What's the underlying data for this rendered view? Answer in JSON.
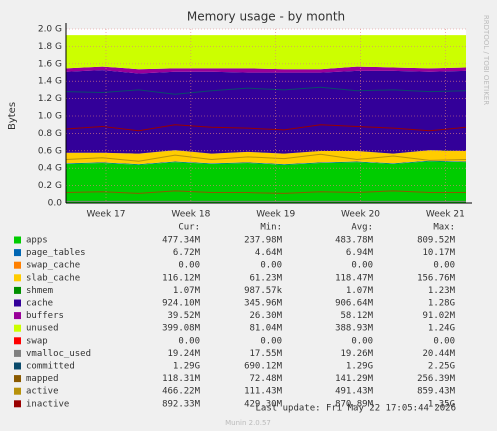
{
  "chart_data": {
    "type": "area",
    "title": "Memory usage - by month",
    "y_label": "Bytes",
    "side_text": "RRDTOOL / TOBI OETIKER",
    "x": [
      0,
      3,
      6,
      9,
      12,
      15,
      18,
      21,
      24,
      27,
      30,
      33
    ],
    "xlim": [
      0,
      33
    ],
    "xticks": [
      {
        "value": 3.3,
        "label": "Week 17"
      },
      {
        "value": 10.3,
        "label": "Week 18"
      },
      {
        "value": 17.3,
        "label": "Week 19"
      },
      {
        "value": 24.3,
        "label": "Week 20"
      },
      {
        "value": 31.3,
        "label": "Week 21"
      }
    ],
    "ylim": [
      0,
      2
    ],
    "yticks": [
      {
        "value": 0,
        "label": "0.0"
      },
      {
        "value": 0.2,
        "label": "0.2 G"
      },
      {
        "value": 0.4,
        "label": "0.4 G"
      },
      {
        "value": 0.6,
        "label": "0.6 G"
      },
      {
        "value": 0.8,
        "label": "0.8 G"
      },
      {
        "value": 1.0,
        "label": "1.0 G"
      },
      {
        "value": 1.2,
        "label": "1.2 G"
      },
      {
        "value": 1.4,
        "label": "1.4 G"
      },
      {
        "value": 1.6,
        "label": "1.6 G"
      },
      {
        "value": 1.8,
        "label": "1.8 G"
      },
      {
        "value": 2.0,
        "label": "2.0 G"
      }
    ],
    "grid": true,
    "stat_headers": [
      "Cur:",
      "Min:",
      "Avg:",
      "Max:"
    ],
    "series": [
      {
        "name": "apps",
        "color": "#00cc00",
        "stack": true,
        "values": [
          0.45,
          0.46,
          0.44,
          0.47,
          0.45,
          0.46,
          0.44,
          0.46,
          0.47,
          0.45,
          0.48,
          0.47
        ],
        "stats": [
          "477.34M",
          "237.98M",
          "483.78M",
          "809.52M"
        ]
      },
      {
        "name": "page_tables",
        "color": "#0066b3",
        "stack": true,
        "values": [
          0.007,
          0.007,
          0.007,
          0.007,
          0.007,
          0.007,
          0.007,
          0.007,
          0.007,
          0.007,
          0.007,
          0.007
        ],
        "stats": [
          "6.72M",
          "4.64M",
          "6.94M",
          "10.17M"
        ]
      },
      {
        "name": "swap_cache",
        "color": "#ff8000",
        "stack": true,
        "values": [
          0,
          0,
          0,
          0,
          0,
          0,
          0,
          0,
          0,
          0,
          0,
          0
        ],
        "stats": [
          "0.00",
          "0.00",
          "0.00",
          "0.00"
        ]
      },
      {
        "name": "slab_cache",
        "color": "#ffcc00",
        "stack": true,
        "values": [
          0.12,
          0.11,
          0.12,
          0.13,
          0.11,
          0.12,
          0.12,
          0.13,
          0.12,
          0.11,
          0.12,
          0.12
        ],
        "stats": [
          "116.12M",
          "61.23M",
          "118.47M",
          "156.76M"
        ]
      },
      {
        "name": "shmem",
        "color": "#008f00",
        "stack": true,
        "values": [
          0.001,
          0.001,
          0.001,
          0.001,
          0.001,
          0.001,
          0.001,
          0.001,
          0.001,
          0.001,
          0.001,
          0.001
        ],
        "stats": [
          "1.07M",
          "987.57k",
          "1.07M",
          "1.23M"
        ]
      },
      {
        "name": "cache",
        "color": "#330099",
        "stack": true,
        "values": [
          0.93,
          0.95,
          0.92,
          0.9,
          0.94,
          0.91,
          0.93,
          0.9,
          0.92,
          0.95,
          0.9,
          0.92
        ],
        "stats": [
          "924.10M",
          "345.96M",
          "906.64M",
          "1.28G"
        ]
      },
      {
        "name": "buffers",
        "color": "#990099",
        "stack": true,
        "values": [
          0.04,
          0.04,
          0.05,
          0.04,
          0.04,
          0.05,
          0.04,
          0.04,
          0.05,
          0.04,
          0.04,
          0.04
        ],
        "stats": [
          "39.52M",
          "26.30M",
          "58.12M",
          "91.02M"
        ]
      },
      {
        "name": "unused",
        "color": "#ccff00",
        "stack": true,
        "values": [
          0.382,
          0.362,
          0.392,
          0.382,
          0.382,
          0.382,
          0.392,
          0.392,
          0.362,
          0.372,
          0.382,
          0.372
        ],
        "stats": [
          "399.08M",
          "81.04M",
          "388.93M",
          "1.24G"
        ]
      },
      {
        "name": "swap",
        "color": "#ff0000",
        "stack": true,
        "values": [
          0,
          0,
          0,
          0,
          0,
          0,
          0,
          0,
          0,
          0,
          0,
          0
        ],
        "stats": [
          "0.00",
          "0.00",
          "0.00",
          "0.00"
        ]
      },
      {
        "name": "vmalloc_used",
        "color": "#808080",
        "stack": false,
        "values": [
          0.019,
          0.019,
          0.019,
          0.019,
          0.019,
          0.019,
          0.019,
          0.019,
          0.019,
          0.019,
          0.019,
          0.019
        ],
        "stats": [
          "19.24M",
          "17.55M",
          "19.26M",
          "20.44M"
        ]
      },
      {
        "name": "committed",
        "color": "#0a4a6b",
        "stack": false,
        "values": [
          1.28,
          1.27,
          1.3,
          1.25,
          1.29,
          1.32,
          1.3,
          1.33,
          1.29,
          1.3,
          1.28,
          1.29
        ],
        "stats": [
          "1.29G",
          "690.12M",
          "1.29G",
          "2.25G"
        ]
      },
      {
        "name": "mapped",
        "color": "#8a5a00",
        "stack": false,
        "values": [
          0.12,
          0.13,
          0.11,
          0.14,
          0.12,
          0.12,
          0.11,
          0.13,
          0.12,
          0.14,
          0.12,
          0.12
        ],
        "stats": [
          "118.31M",
          "72.48M",
          "141.29M",
          "256.39M"
        ]
      },
      {
        "name": "active",
        "color": "#b8920b",
        "stack": false,
        "values": [
          0.5,
          0.52,
          0.48,
          0.55,
          0.5,
          0.53,
          0.51,
          0.56,
          0.5,
          0.54,
          0.49,
          0.5
        ],
        "stats": [
          "466.22M",
          "111.43M",
          "491.43M",
          "859.43M"
        ]
      },
      {
        "name": "inactive",
        "color": "#990000",
        "stack": false,
        "values": [
          0.85,
          0.88,
          0.83,
          0.9,
          0.87,
          0.86,
          0.84,
          0.9,
          0.88,
          0.86,
          0.83,
          0.87
        ],
        "stats": [
          "892.33M",
          "429.30M",
          "870.89M",
          "1.35G"
        ]
      }
    ],
    "last_update": "Last update: Fri May 22 17:05:44 2026",
    "footer": "Munin 2.0.57"
  }
}
